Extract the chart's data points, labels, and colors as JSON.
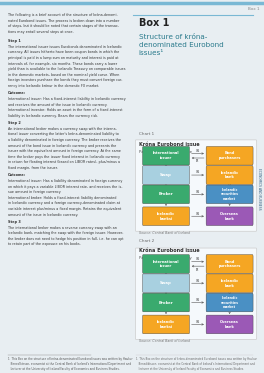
{
  "page_bg": "#e8eef2",
  "left_bg": "#d4e0e8",
  "right_bg": "#ffffff",
  "top_stripe_color": "#7ab8d4",
  "right_stripe_color": "#7ab8d4",
  "box1_label": "Box 1",
  "box1_title_line1": "Structure of króna-",
  "box1_title_line2": "denominated Eurobond",
  "box1_title_line3": "issues¹",
  "box1_title_color": "#2a7a8c",
  "chart1_label": "Chart 1",
  "chart1_name": "Króna Eurobond issue",
  "chart1_caption": "Payment flows on issuance",
  "chart2_label": "Chart 2",
  "chart2_name": "Króna Eurobond issue",
  "chart2_caption": "Payment flows on maturity",
  "source": "Source: Central Bank of Iceland",
  "colors": {
    "green": "#3aaa6e",
    "orange": "#f5a623",
    "light_blue": "#a8d0e0",
    "blue": "#4a90c4",
    "purple": "#9b59b6"
  },
  "diagram_border": "#cccccc",
  "diagram_bg": "#f5f9fc",
  "arrow_color": "#555555",
  "node_text_color": "#ffffff"
}
